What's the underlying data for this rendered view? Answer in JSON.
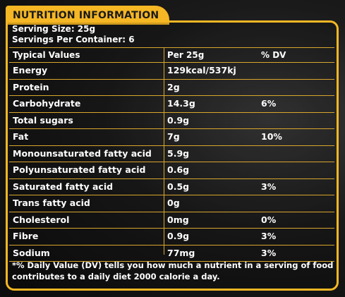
{
  "header": {
    "title": "NUTRITION INFORMATION"
  },
  "serving": {
    "size": "Serving Size: 25g",
    "per_container": "Servings Per Container: 6"
  },
  "table": {
    "columns": [
      "Typical Values",
      "Per 25g",
      "% DV"
    ],
    "rows": [
      {
        "name": "Energy",
        "per": "129kcal/537kj",
        "dv": ""
      },
      {
        "name": "Protein",
        "per": "2g",
        "dv": ""
      },
      {
        "name": "Carbohydrate",
        "per": "14.3g",
        "dv": "6%"
      },
      {
        "name": "Total sugars",
        "per": "0.9g",
        "dv": ""
      },
      {
        "name": "Fat",
        "per": "7g",
        "dv": "10%"
      },
      {
        "name": "Monounsaturated fatty acid",
        "per": "5.9g",
        "dv": ""
      },
      {
        "name": "Polyunsaturated fatty acid",
        "per": "0.6g",
        "dv": ""
      },
      {
        "name": "Saturated fatty acid",
        "per": "0.5g",
        "dv": "3%"
      },
      {
        "name": "Trans fatty acid",
        "per": "0g",
        "dv": ""
      },
      {
        "name": "Cholesterol",
        "per": "0mg",
        "dv": "0%"
      },
      {
        "name": "Fibre",
        "per": "0.9g",
        "dv": "3%"
      },
      {
        "name": "Sodium",
        "per": "77mg",
        "dv": "3%"
      }
    ]
  },
  "footnote": {
    "line1": "*% Daily Value (DV) tells you how much a nutrient in a serving of food",
    "line2": "contributes to a daily diet 2000 calorie a day."
  },
  "colors": {
    "accent": "#f5b724",
    "rule": "#d9a62c",
    "background": "#141414",
    "text": "#ffffff"
  }
}
